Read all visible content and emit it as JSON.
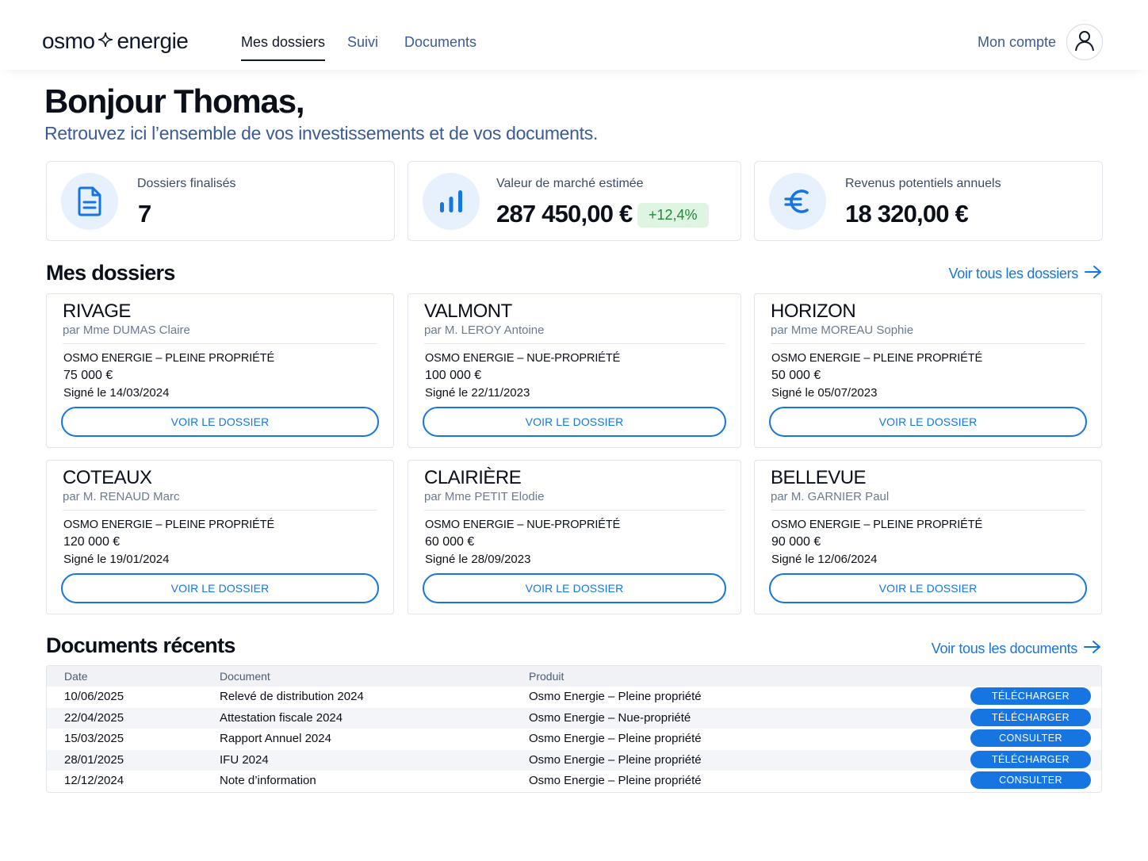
{
  "header": {
    "logo_left": "osmo",
    "logo_right": "energie",
    "nav": {
      "mes_dossiers": "Mes dossiers",
      "suivi": "Suivi",
      "documents": "Documents"
    },
    "account_label": "Mon compte"
  },
  "greeting": {
    "title": "Bonjour Thomas,",
    "subtitle": "Retrouvez ici l’ensemble de vos investissements et de vos documents."
  },
  "stats": {
    "dossiers": {
      "label": "Dossiers finalisés",
      "value": "7",
      "icon": "document-icon"
    },
    "market": {
      "label": "Valeur de marché estimée",
      "value": "287 450,00 €",
      "change": "+12,4%",
      "icon": "bar-chart-icon"
    },
    "revenue": {
      "label": "Revenus potentiels annuels",
      "value": "18 320,00 €",
      "icon": "euro-icon"
    }
  },
  "dossiers_section": {
    "title": "Mes dossiers",
    "see_all": "Voir tous les dossiers",
    "button_label": "VOIR LE DOSSIER",
    "items": [
      {
        "name": "RIVAGE",
        "owner": "par Mme DUMAS Claire",
        "product": "OSMO ENERGIE – PLEINE PROPRIÉTÉ",
        "amount": "75 000 €",
        "signed": "Signé le 14/03/2024"
      },
      {
        "name": "VALMONT",
        "owner": "par M. LEROY Antoine",
        "product": "OSMO ENERGIE – NUE-PROPRIÉTÉ",
        "amount": "100 000 €",
        "signed": "Signé le 22/11/2023"
      },
      {
        "name": "HORIZON",
        "owner": "par Mme MOREAU Sophie",
        "product": "OSMO ENERGIE – PLEINE PROPRIÉTÉ",
        "amount": "50 000 €",
        "signed": "Signé le 05/07/2023"
      },
      {
        "name": "COTEAUX",
        "owner": "par M. RENAUD Marc",
        "product": "OSMO ENERGIE – PLEINE PROPRIÉTÉ",
        "amount": "120 000 €",
        "signed": "Signé le 19/01/2024"
      },
      {
        "name": "CLAIRIÈRE",
        "owner": "par Mme PETIT Elodie",
        "product": "OSMO ENERGIE – NUE-PROPRIÉTÉ",
        "amount": "60 000 €",
        "signed": "Signé le 28/09/2023"
      },
      {
        "name": "BELLEVUE",
        "owner": "par M. GARNIER Paul",
        "product": "OSMO ENERGIE – PLEINE PROPRIÉTÉ",
        "amount": "90 000 €",
        "signed": "Signé le 12/06/2024"
      }
    ]
  },
  "documents_section": {
    "title": "Documents récents",
    "see_all": "Voir tous les documents",
    "columns": [
      "Date",
      "Document",
      "Produit"
    ],
    "rows": [
      {
        "date": "10/06/2025",
        "document": "Relevé de distribution 2024",
        "product": "Osmo Energie – Pleine propriété",
        "action": "TÉLÉCHARGER"
      },
      {
        "date": "22/04/2025",
        "document": "Attestation fiscale 2024",
        "product": "Osmo Energie – Nue-propriété",
        "action": "TÉLÉCHARGER"
      },
      {
        "date": "15/03/2025",
        "document": "Rapport Annuel 2024",
        "product": "Osmo Energie – Pleine propriété",
        "action": "CONSULTER"
      },
      {
        "date": "28/01/2025",
        "document": "IFU 2024",
        "product": "Osmo Energie – Pleine propriété",
        "action": "TÉLÉCHARGER"
      },
      {
        "date": "12/12/2024",
        "document": "Note d’information",
        "product": "Osmo Energie – Pleine propriété",
        "action": "CONSULTER"
      }
    ]
  },
  "colors": {
    "accent": "#1675e0",
    "nav_muted": "#3b5a96",
    "icon_bg": "#e6f1fd",
    "positive_bg": "#dff4e3",
    "positive_text": "#1e8a3a"
  }
}
